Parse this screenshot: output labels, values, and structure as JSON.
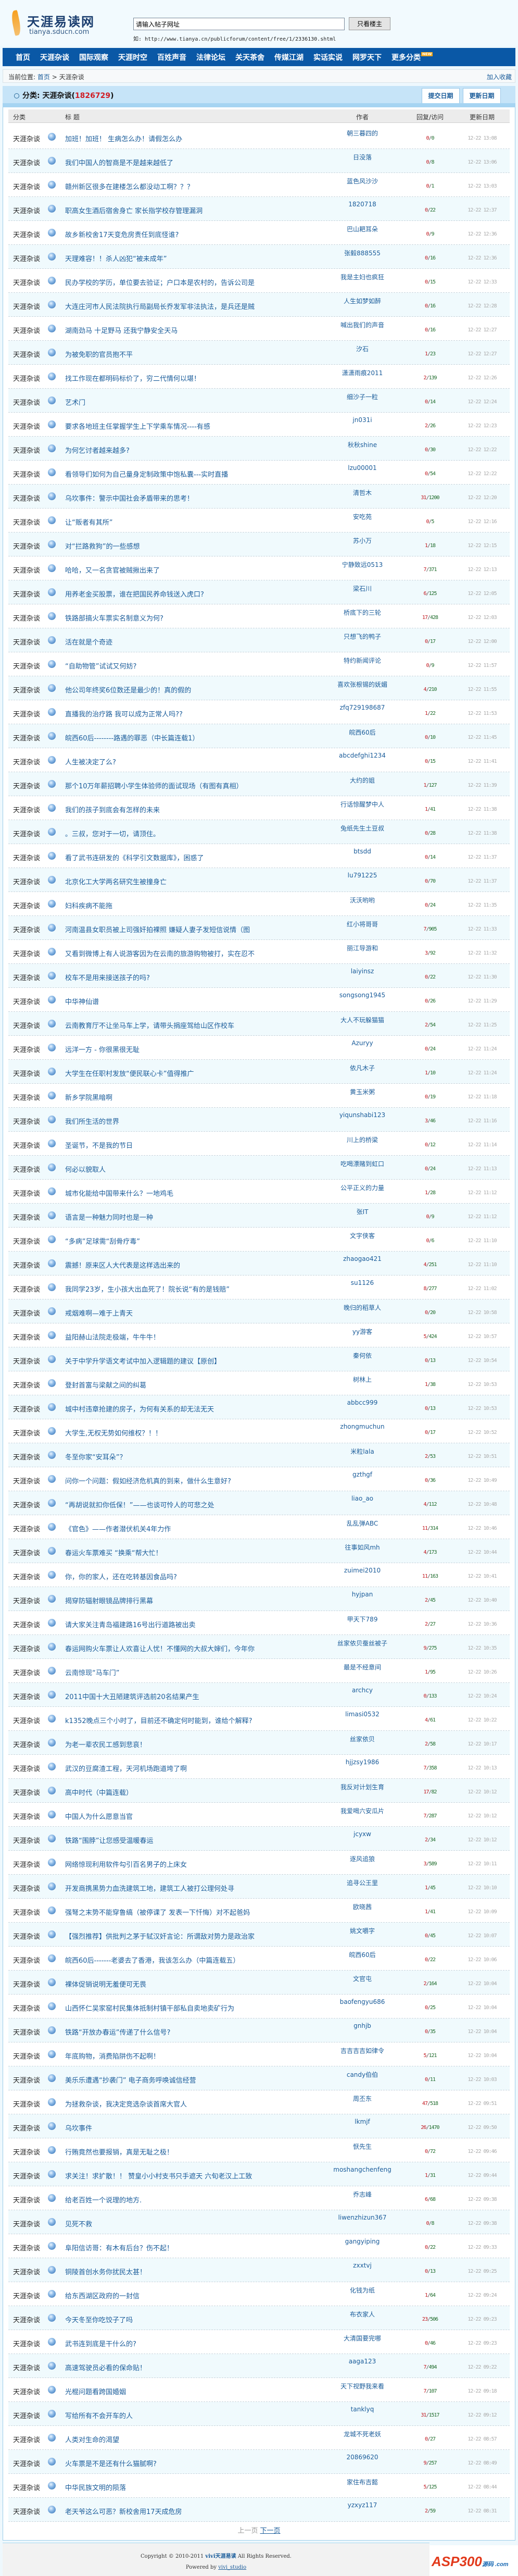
{
  "header": {
    "logo_cn": "天涯易读网",
    "logo_en": "tianya.sducn.com",
    "search_value": "请输入帖子网址",
    "search_button": "只看楼主",
    "hint": "如: http://www.tianya.cn/publicforum/content/free/1/2336130.shtml"
  },
  "nav": [
    "首页",
    "天涯杂谈",
    "国际观察",
    "天涯时空",
    "百姓声音",
    "法律论坛",
    "关天茶舍",
    "传媒江湖",
    "实话实说",
    "网罗天下",
    "更多分类"
  ],
  "nav_new_badge": "NEW",
  "breadcrumb": {
    "label": "当前位置:",
    "home": "首页",
    "sep": ">",
    "current": "天涯杂谈",
    "favorite": "加入收藏"
  },
  "category": {
    "label": "分类:",
    "name": "天涯杂谈",
    "open": "(",
    "count": "1826729",
    "close": ")",
    "sort_submit": "提交日期",
    "sort_update": "更新日期"
  },
  "columns": {
    "category": "分类",
    "title": "标 题",
    "author": "作者",
    "replies": "回复/访问",
    "updated": "更新日期"
  },
  "row_category": "天涯杂谈",
  "rows": [
    [
      "加班！加班！ 生病怎么办！请假怎么办",
      "朝三暮四的",
      0,
      0,
      "12-22 13:08"
    ],
    [
      "我们中国人的智商是不是越来越低了",
      "日没落",
      0,
      8,
      "12-22 13:06"
    ],
    [
      "赣州新区很多在建楼怎么都没动工啊？？？",
      "蓝色风沙沙",
      0,
      1,
      "12-22 13:03"
    ],
    [
      "职高女生酒后宿舍身亡 家长指学校存管理漏洞",
      "1820718",
      0,
      22,
      "12-22 12:37"
    ],
    [
      "故乡新校舍17天变危房责任到底怪谁?",
      "巴山耙耳朵",
      0,
      9,
      "12-22 12:36"
    ],
    [
      "天理难容！！杀人凶犯“被未成年”",
      "张毅888555",
      0,
      16,
      "12-22 12:36"
    ],
    [
      "民办学校的学历，单位要去验证；户口本是农村的，告诉公司是",
      "我是主妇也疯狂",
      0,
      15,
      "12-22 12:33"
    ],
    [
      "大连庄河市人民法院执行局副局长乔发军非法执法，是兵还是贼",
      "人生如梦如醉",
      0,
      16,
      "12-22 12:28"
    ],
    [
      "湖南劲马 十足野马 还我宁静安全天马",
      "喊出我们的声音",
      0,
      16,
      "12-22 12:27"
    ],
    [
      "为被免职的官员抱不平",
      "汐石",
      1,
      23,
      "12-22 12:27"
    ],
    [
      "找工作现在都明码标价了，穷二代情何以堪！",
      "潇潇雨痕2011",
      2,
      139,
      "12-22 12:26"
    ],
    [
      "艺术门",
      "细沙子一粒",
      0,
      14,
      "12-22 12:24"
    ],
    [
      "要求各地班主任掌握学生上下学乘车情况----有感",
      "jn031i",
      2,
      26,
      "12-22 12:23"
    ],
    [
      "为何乞讨者越来越多?",
      "秋秋shine",
      0,
      30,
      "12-22 12:22"
    ],
    [
      "看领导们如何为自己量身定制政策中饱私囊---实时直播",
      "lzu00001",
      0,
      54,
      "12-22 12:22"
    ],
    [
      "乌坎事件：警示中国社会矛盾带来的思考！",
      "清哲木",
      31,
      1200,
      "12-22 12:20"
    ],
    [
      "让“贩者有其所”",
      "安吃苑",
      0,
      5,
      "12-22 12:16"
    ],
    [
      "对“拦路救狗”的一些感想",
      "苏小万",
      1,
      18,
      "12-22 12:15"
    ],
    [
      "哈哈，又一名贪官被贼揪出来了",
      "宁静致远0513",
      7,
      371,
      "12-22 12:13"
    ],
    [
      "用养老金买股票，谁在把国民养命钱送入虎口?",
      "梁石川",
      6,
      125,
      "12-22 12:05"
    ],
    [
      "铁路部搞火车票实名制意义为何?",
      "桥底下的三轮",
      17,
      428,
      "12-22 12:03"
    ],
    [
      "活在就是个奇迹",
      "只想飞的鸭子",
      0,
      17,
      "12-22 12:00"
    ],
    [
      "“自助物管”试试又何妨?",
      "特约新闻评论",
      0,
      9,
      "12-22 11:57"
    ],
    [
      "他公司年终奖6位数还是最少的！真的假的",
      "喜欢张根锡的妩媚",
      4,
      210,
      "12-22 11:55"
    ],
    [
      "直播我的治疗路 我可以成为正常人吗??",
      "zfq729198687",
      1,
      22,
      "12-22 11:53"
    ],
    [
      "皖西60后--------路遇的罪恶（中长篇连载1）",
      "皖西60后",
      0,
      10,
      "12-22 11:45"
    ],
    [
      "人生被决定了么?",
      "abcdefghi1234",
      0,
      15,
      "12-22 11:41"
    ],
    [
      "那个10万年薪招聘小学生体验师的面试现场（有图有真相）",
      "大约的姐",
      1,
      127,
      "12-22 11:39"
    ],
    [
      "我们的孩子到底会有怎样的未来",
      "行话惊醒梦中人",
      1,
      41,
      "12-22 11:38"
    ],
    [
      "。三叔，您对于一切，请顶住。",
      "兔纸先生土豆叔",
      0,
      28,
      "12-22 11:38"
    ],
    [
      "看了武书连研发的《科学引文数据库》，困惑了",
      "btsdd",
      0,
      14,
      "12-22 11:37"
    ],
    [
      "北京化工大学两名研究生被撞身亡",
      "lu791225",
      0,
      70,
      "12-22 11:37"
    ],
    [
      "妇科疾病不能拖",
      "沃沃哟哟",
      0,
      24,
      "12-22 11:35"
    ],
    [
      "河南温县女职员被上司强奸拍裸照 嫌疑人妻子发短信说情（图",
      "红小将哥哥",
      7,
      905,
      "12-22 11:33"
    ],
    [
      "又看到微博上有人说游客因为在云南的旅游购物被打，实在忍不",
      "丽江导游和",
      3,
      92,
      "12-22 11:32"
    ],
    [
      "校车不是用来接送孩子的吗?",
      "laiyinsz",
      0,
      22,
      "12-22 11:30"
    ],
    [
      "中华神仙谱",
      "songsong1945",
      0,
      26,
      "12-22 11:29"
    ],
    [
      "云南教育厅不让坐马车上学，请带头捐座驾给山区作校车",
      "大人不玩躲猫猫",
      2,
      54,
      "12-22 11:25"
    ],
    [
      "远洋一方 - 你很黑很无耻",
      "Azuryy",
      0,
      24,
      "12-22 11:24"
    ],
    [
      "大学生在任职村发放“便民联心卡”值得推广",
      "依凡木子",
      1,
      10,
      "12-22 11:24"
    ],
    [
      "新乡学院黑暗啊",
      "黄玉米粥",
      0,
      19,
      "12-22 11:18"
    ],
    [
      "我们所生活的世界",
      "yiqunshabi123",
      3,
      46,
      "12-22 11:16"
    ],
    [
      "圣诞节，不是我的节日",
      "川上的桥梁",
      0,
      12,
      "12-22 11:14"
    ],
    [
      "何必以貌取人",
      "吃喝漂赌到虹口",
      0,
      24,
      "12-22 11:13"
    ],
    [
      "城市化能给中国带来什么？一地鸡毛",
      "公平正义的力量",
      1,
      28,
      "12-22 11:12"
    ],
    [
      "语言是一种魅力同时也是一种",
      "张IT",
      0,
      9,
      "12-22 11:12"
    ],
    [
      "“多病”足球需“刮骨疗毒”",
      "文字侠客",
      0,
      6,
      "12-22 11:10"
    ],
    [
      "震撼！原来区人大代表是这样选出来的",
      "zhaogao421",
      4,
      251,
      "12-22 11:10"
    ],
    [
      "我同学23岁，生小孩大出血死了！院长说“有的是钱赔”",
      "su1126",
      8,
      277,
      "12-22 11:02"
    ],
    [
      "戒烟难啊—难于上青天",
      "晚归的稻草人",
      0,
      20,
      "12-22 10:58"
    ],
    [
      "益阳赫山法院走极端，牛牛牛！",
      "yy游客",
      5,
      424,
      "12-22 10:57"
    ],
    [
      "关于中学升学语文考试中加入逻辑题的建议【原创】",
      "秦何依",
      0,
      13,
      "12-22 10:54"
    ],
    [
      "登封首富与梁献之间的纠葛",
      "树林上",
      1,
      38,
      "12-22 10:53"
    ],
    [
      "城中村违章抢建的房子，为何有关系的却无法无天",
      "abbcc999",
      0,
      13,
      "12-22 10:53"
    ],
    [
      "大学生,无权无势如何维权？！！",
      "zhongmuchun",
      0,
      17,
      "12-22 10:52"
    ],
    [
      "冬至你家“安耳朵”？",
      "米粒lala",
      2,
      53,
      "12-22 10:51"
    ],
    [
      "问你一个问题：假如经济危机真的到来，做什么生意好?",
      "gzthgf",
      0,
      36,
      "12-22 10:49"
    ],
    [
      "“再胡说就扣你低保！”——也谈可怜人的可悲之处",
      "liao_ao",
      4,
      112,
      "12-22 10:48"
    ],
    [
      "《官色》——作者潜伏机关4年力作",
      "乱乱弹ABC",
      11,
      314,
      "12-22 10:46"
    ],
    [
      "春运火车票难买 “换乘“帮大忙！",
      "往事如风mh",
      4,
      173,
      "12-22 10:44"
    ],
    [
      "你，你的家人，还在吃转基因食品吗?",
      "zuimei2010",
      11,
      163,
      "12-22 10:41"
    ],
    [
      "揭穿防辐射眼镜品牌排行黑幕",
      "hyjpan",
      2,
      45,
      "12-22 10:40"
    ],
    [
      "请大家关注青岛福建路16号出行道路被出卖",
      "甲天下789",
      2,
      27,
      "12-22 10:36"
    ],
    [
      "春运网购火车票让人欢喜让人忧！不懂网的大叔大婶们，今年你",
      "丝家依贝蚕丝被子",
      9,
      275,
      "12-22 10:35"
    ],
    [
      "云南惊现“马车门”",
      "最是不经意间",
      1,
      95,
      "12-22 10:26"
    ],
    [
      "2011中国十大丑陋建筑评选前20名结果产生",
      "archcy",
      0,
      133,
      "12-22 10:24"
    ],
    [
      "k1352晚点三个小时了，目前还不确定何时能到，谁给个解释?",
      "limasi0532",
      4,
      61,
      "12-22 10:22"
    ],
    [
      "为老一辈农民工感到悲哀！",
      "丝家依贝",
      2,
      58,
      "12-22 10:17"
    ],
    [
      "武汉的豆腐渣工程，天河机场跑道垮了啊",
      "hjjzsy1986",
      7,
      358,
      "12-22 10:13"
    ],
    [
      "高中时代（中篇连载）",
      "我反对计划生育",
      17,
      82,
      "12-22 10:12"
    ],
    [
      "中国人为什么愿意当官",
      "我爱喝六安瓜片",
      7,
      287,
      "12-22 10:12"
    ],
    [
      "铁路“围脖”让您感受温暖春运",
      "jcyxw",
      2,
      34,
      "12-22 10:12"
    ],
    [
      "网络惊现利用软件勾引百名男子的上床女",
      "逐风追狼",
      3,
      589,
      "12-22 10:11"
    ],
    [
      "开发商携黑势力血洗建筑工地，建筑工人被打公理何处寻",
      "追寻公王里",
      1,
      45,
      "12-22 10:10"
    ],
    [
      "强弩之末势不能穿鲁缟（被停课了 发表一下忏悔）对不起爸妈",
      "欧晓茜",
      1,
      41,
      "12-22 10:09"
    ],
    [
      "【强烈推荐】供批判之茅于轼汉奸言论：所谓敌对势力是政治家",
      "姚文嚼字",
      0,
      45,
      "12-22 10:07"
    ],
    [
      "皖西60后-------老婆去了香港，我该怎么办（中篇连载五）",
      "皖西60后",
      0,
      22,
      "12-22 10:06"
    ],
    [
      "裸体促销说明无羞便可无畏",
      "文官屯",
      2,
      164,
      "12-22 10:04"
    ],
    [
      "山西怀仁吴家窑村民集体抵制村镇干部私自卖地卖矿行为",
      "baofengyu686",
      0,
      25,
      "12-22 10:04"
    ],
    [
      "铁路“开放办春运”传递了什么信号?",
      "gnhjb",
      0,
      35,
      "12-22 10:04"
    ],
    [
      "年底购物，消费陷阱伤不起啊！",
      "吉吉吉吉如律令",
      5,
      121,
      "12-22 10:04"
    ],
    [
      "美乐乐遭遇“抄袭门” 电子商务呼唤诚信经营",
      "candy伯伯",
      0,
      11,
      "12-22 10:03"
    ],
    [
      "为拯救杂谈，我决定竞选杂谈首席大官人",
      "周丕东",
      47,
      518,
      "12-22 09:51"
    ],
    [
      "乌坎事件",
      "lkmjf",
      26,
      1470,
      "12-22 09:50"
    ],
    [
      "行贿竟然也要报销，真是无耻之极！",
      "恹先生",
      0,
      72,
      "12-22 09:46"
    ],
    [
      "求关注！求扩散！！ 赞皇小小村支书只手遮天 六旬老汉上工致",
      "moshangchenfeng",
      1,
      31,
      "12-22 09:44"
    ],
    [
      "给老百姓一个说理的地方.",
      "乔志峰",
      6,
      68,
      "12-22 09:38"
    ],
    [
      "见死不救",
      "liwenzhizun367",
      0,
      8,
      "12-22 09:38"
    ],
    [
      "阜阳信访哥：有木有后台？伤不起！",
      "gangyiping",
      0,
      22,
      "12-22 09:33"
    ],
    [
      "铜陵首创水务你扰民太甚！",
      "zxxtvj",
      0,
      13,
      "12-22 09:25"
    ],
    [
      "给东西湖区政府的一封信",
      "化钱为纸",
      1,
      64,
      "12-22 09:24"
    ],
    [
      "今天冬至你吃饺子了吗",
      "布衣家人",
      23,
      506,
      "12-22 09:23"
    ],
    [
      "武书连到底是干什么的?",
      "大清国要完哪",
      0,
      46,
      "12-22 09:23"
    ],
    [
      "高速驾驶员必看的保命贴！",
      "aaga123",
      7,
      494,
      "12-22 09:22"
    ],
    [
      "光棍问题看跨国婚姻",
      "天下视野我来看",
      7,
      107,
      "12-22 09:18"
    ],
    [
      "写给所有不会开车的人",
      "tanklyq",
      31,
      1517,
      "12-22 09:12"
    ],
    [
      "人类对生命的渴望",
      "龙城不死老妖",
      0,
      27,
      "12-22 08:57"
    ],
    [
      "火车票是不是还有什么猫腻啊?",
      "20869620",
      9,
      257,
      "12-22 08:49"
    ],
    [
      "中华民族文明的陨落",
      "家住布吉懿",
      5,
      125,
      "12-22 08:44"
    ],
    [
      "老天爷这么可恶？新校舍用17天成危房",
      "yzxyz117",
      2,
      59,
      "12-22 08:31"
    ]
  ],
  "pager": {
    "prev": "上一页",
    "next": "下一页"
  },
  "footer": {
    "copyright_pre": "Copyright © 2010-2011",
    "brand": "vivi天涯易读",
    "copyright_post": "All Rights Reserved.",
    "powered_pre": "Powered by",
    "powered_link": "vivi_studio"
  },
  "watermark": {
    "text": "ASP300",
    "sub": "源码 .com"
  },
  "colors": {
    "nav": "#0a58a6",
    "link": "#1a5c9a",
    "reply": "#c0141c",
    "visits": "#1d6b2a",
    "count": "#d01c24"
  }
}
